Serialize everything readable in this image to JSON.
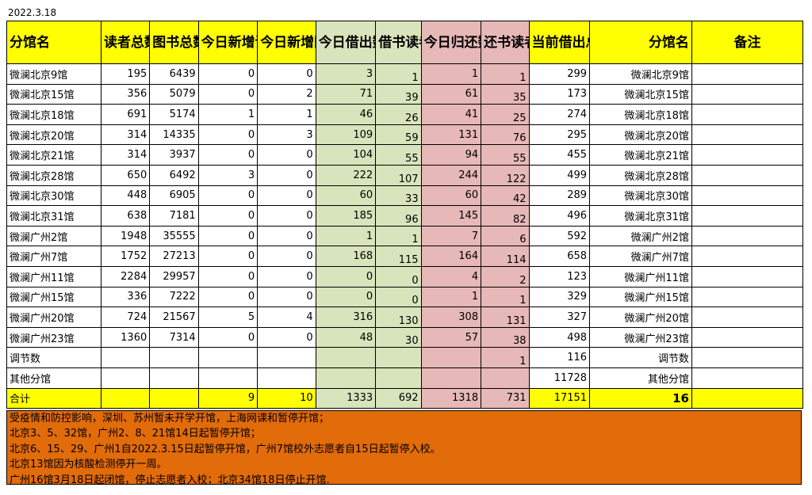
{
  "date": "2022.3.18",
  "headers": {
    "branch": "分馆名",
    "readers": "读者总数",
    "books": "图书总数",
    "new_readers": "今日新增读者",
    "new_books": "今日新增图书",
    "lent_today": "今日借出数",
    "borrowing_readers": "借书读者",
    "returned_today": "今日归还数",
    "returning_readers": "还书读者",
    "current_lent": "当前借出总数",
    "branch2": "分馆名",
    "remark": "备注"
  },
  "rows": [
    {
      "name": "微澜北京9馆",
      "readers": "195",
      "books": "6439",
      "new_readers": "0",
      "new_books": "0",
      "lent": "3",
      "borrowers": "1",
      "returned": "1",
      "returners": "1",
      "current": "299",
      "name2": "微澜北京9馆",
      "remark": ""
    },
    {
      "name": "微澜北京15馆",
      "readers": "356",
      "books": "5079",
      "new_readers": "0",
      "new_books": "2",
      "lent": "71",
      "borrowers": "39",
      "returned": "61",
      "returners": "35",
      "current": "173",
      "name2": "微澜北京15馆",
      "remark": ""
    },
    {
      "name": "微澜北京18馆",
      "readers": "691",
      "books": "5174",
      "new_readers": "1",
      "new_books": "1",
      "lent": "46",
      "borrowers": "26",
      "returned": "41",
      "returners": "25",
      "current": "274",
      "name2": "微澜北京18馆",
      "remark": ""
    },
    {
      "name": "微澜北京20馆",
      "readers": "314",
      "books": "14335",
      "new_readers": "0",
      "new_books": "3",
      "lent": "109",
      "borrowers": "59",
      "returned": "131",
      "returners": "76",
      "current": "295",
      "name2": "微澜北京20馆",
      "remark": ""
    },
    {
      "name": "微澜北京21馆",
      "readers": "314",
      "books": "3937",
      "new_readers": "0",
      "new_books": "0",
      "lent": "104",
      "borrowers": "55",
      "returned": "94",
      "returners": "55",
      "current": "455",
      "name2": "微澜北京21馆",
      "remark": ""
    },
    {
      "name": "微澜北京28馆",
      "readers": "650",
      "books": "6492",
      "new_readers": "3",
      "new_books": "0",
      "lent": "222",
      "borrowers": "107",
      "returned": "244",
      "returners": "122",
      "current": "499",
      "name2": "微澜北京28馆",
      "remark": ""
    },
    {
      "name": "微澜北京30馆",
      "readers": "448",
      "books": "6905",
      "new_readers": "0",
      "new_books": "0",
      "lent": "60",
      "borrowers": "33",
      "returned": "60",
      "returners": "42",
      "current": "289",
      "name2": "微澜北京30馆",
      "remark": ""
    },
    {
      "name": "微澜北京31馆",
      "readers": "638",
      "books": "7181",
      "new_readers": "0",
      "new_books": "0",
      "lent": "185",
      "borrowers": "96",
      "returned": "145",
      "returners": "82",
      "current": "496",
      "name2": "微澜北京31馆",
      "remark": ""
    },
    {
      "name": "微澜广州2馆",
      "readers": "1948",
      "books": "35555",
      "new_readers": "0",
      "new_books": "0",
      "lent": "1",
      "borrowers": "1",
      "returned": "7",
      "returners": "6",
      "current": "592",
      "name2": "微澜广州2馆",
      "remark": ""
    },
    {
      "name": "微澜广州7馆",
      "readers": "1752",
      "books": "27213",
      "new_readers": "0",
      "new_books": "0",
      "lent": "168",
      "borrowers": "115",
      "returned": "164",
      "returners": "114",
      "current": "658",
      "name2": "微澜广州7馆",
      "remark": ""
    },
    {
      "name": "微澜广州11馆",
      "readers": "2284",
      "books": "29957",
      "new_readers": "0",
      "new_books": "0",
      "lent": "0",
      "borrowers": "0",
      "returned": "4",
      "returners": "2",
      "current": "123",
      "name2": "微澜广州11馆",
      "remark": ""
    },
    {
      "name": "微澜广州15馆",
      "readers": "336",
      "books": "7222",
      "new_readers": "0",
      "new_books": "0",
      "lent": "0",
      "borrowers": "0",
      "returned": "1",
      "returners": "1",
      "current": "329",
      "name2": "微澜广州15馆",
      "remark": ""
    },
    {
      "name": "微澜广州20馆",
      "readers": "724",
      "books": "21567",
      "new_readers": "5",
      "new_books": "4",
      "lent": "316",
      "borrowers": "130",
      "returned": "308",
      "returners": "131",
      "current": "327",
      "name2": "微澜广州20馆",
      "remark": ""
    },
    {
      "name": "微澜广州23馆",
      "readers": "1360",
      "books": "7314",
      "new_readers": "0",
      "new_books": "0",
      "lent": "48",
      "borrowers": "30",
      "returned": "57",
      "returners": "38",
      "current": "498",
      "name2": "微澜广州23馆",
      "remark": ""
    },
    {
      "name": "调节数",
      "readers": "",
      "books": "",
      "new_readers": "",
      "new_books": "",
      "lent": "",
      "borrowers": "",
      "returned": "",
      "returners": "1",
      "current": "116",
      "name2": "调节数",
      "remark": ""
    },
    {
      "name": "其他分馆",
      "readers": "",
      "books": "",
      "new_readers": "",
      "new_books": "",
      "lent": "",
      "borrowers": "",
      "returned": "",
      "returners": "",
      "current": "11728",
      "name2": "其他分馆",
      "remark": ""
    }
  ],
  "total": {
    "name": "合计",
    "readers": "",
    "books": "",
    "new_readers": "9",
    "new_books": "10",
    "lent": "1333",
    "borrowers": "692",
    "returned": "1318",
    "returners": "731",
    "current": "17151",
    "name2": "16",
    "remark": ""
  },
  "notes": [
    "受疫情和防控影响，深圳、苏州暂未开学开馆，上海网课和暂停开馆；",
    "北京3、5、32馆，广州2、8、21馆14日起暂停开馆；",
    "北京6、15、29、广州1自2022.3.15日起暂停开馆，广州7馆校外志愿者自15日起暂停入校。",
    "北京13馆因为核酸检测停开一周。",
    "广州16馆3月18日起闭馆，停止志愿者入校；北京34馆18日停止开馆."
  ],
  "colors": {
    "header": "#ffff00",
    "lent_cols": "#d8e4bc",
    "return_cols": "#e6b8b7",
    "notes_bg": "#e26b0a"
  }
}
